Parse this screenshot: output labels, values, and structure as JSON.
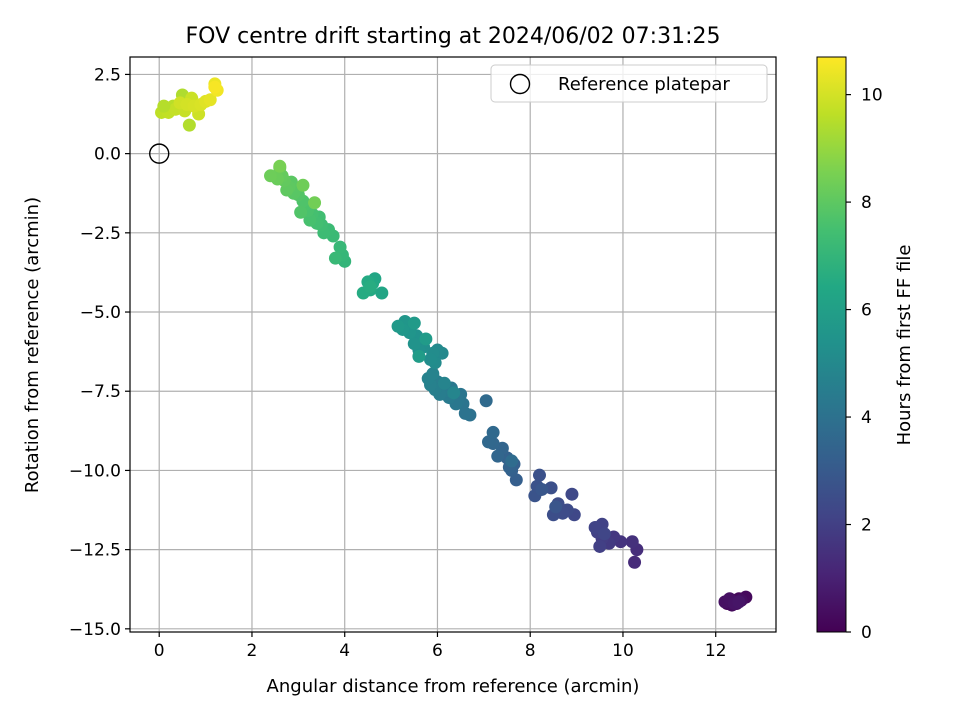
{
  "chart_data": {
    "type": "scatter",
    "title": "FOV centre drift starting at 2024/06/02 07:31:25",
    "xlabel": "Angular distance from reference (arcmin)",
    "ylabel": "Rotation from reference (arcmin)",
    "xlim": [
      -0.63,
      13.3
    ],
    "ylim": [
      -15.1,
      3.05
    ],
    "xticks": [
      0,
      2,
      4,
      6,
      8,
      10,
      12
    ],
    "xtick_labels": [
      "0",
      "2",
      "4",
      "6",
      "8",
      "10",
      "12"
    ],
    "yticks": [
      2.5,
      0.0,
      -2.5,
      -5.0,
      -7.5,
      -10.0,
      -12.5,
      -15.0
    ],
    "ytick_labels": [
      "2.5",
      "0.0",
      "−2.5",
      "−5.0",
      "−7.5",
      "−10.0",
      "−12.5",
      "−15.0"
    ],
    "grid": true,
    "legend": {
      "placement": "top-right",
      "entries": [
        "Reference platepar"
      ]
    },
    "colorbar": {
      "label": "Hours from first FF file",
      "colormap": "viridis",
      "range": [
        0,
        10.7
      ],
      "ticks": [
        0,
        2,
        4,
        6,
        8,
        10
      ],
      "tick_labels": [
        "0",
        "2",
        "4",
        "6",
        "8",
        "10"
      ]
    },
    "reference_point": {
      "x": 0,
      "y": 0,
      "name": "Reference platepar"
    },
    "points": [
      {
        "x": 12.25,
        "y": -14.2,
        "t": 0.05
      },
      {
        "x": 12.3,
        "y": -14.15,
        "t": 0.1
      },
      {
        "x": 12.4,
        "y": -14.1,
        "t": 0.15
      },
      {
        "x": 12.5,
        "y": -14.05,
        "t": 0.2
      },
      {
        "x": 12.65,
        "y": -14.0,
        "t": 0.25
      },
      {
        "x": 12.35,
        "y": -14.25,
        "t": 0.3
      },
      {
        "x": 12.45,
        "y": -14.2,
        "t": 0.35
      },
      {
        "x": 12.55,
        "y": -14.1,
        "t": 0.4
      },
      {
        "x": 12.2,
        "y": -14.15,
        "t": 0.45
      },
      {
        "x": 12.3,
        "y": -14.05,
        "t": 0.5
      },
      {
        "x": 12.4,
        "y": -14.2,
        "t": 0.55
      },
      {
        "x": 12.5,
        "y": -14.15,
        "t": 0.6
      },
      {
        "x": 10.25,
        "y": -12.9,
        "t": 1.3
      },
      {
        "x": 10.3,
        "y": -12.5,
        "t": 1.4
      },
      {
        "x": 10.2,
        "y": -12.25,
        "t": 1.5
      },
      {
        "x": 9.95,
        "y": -12.25,
        "t": 1.6
      },
      {
        "x": 9.8,
        "y": -12.1,
        "t": 1.7
      },
      {
        "x": 9.7,
        "y": -12.3,
        "t": 1.8
      },
      {
        "x": 9.55,
        "y": -12.15,
        "t": 1.9
      },
      {
        "x": 9.5,
        "y": -12.4,
        "t": 2.0
      },
      {
        "x": 9.45,
        "y": -11.95,
        "t": 2.05
      },
      {
        "x": 9.55,
        "y": -11.7,
        "t": 2.1
      },
      {
        "x": 9.4,
        "y": -11.8,
        "t": 2.15
      },
      {
        "x": 9.6,
        "y": -12.0,
        "t": 2.2
      },
      {
        "x": 8.95,
        "y": -11.4,
        "t": 2.3
      },
      {
        "x": 8.9,
        "y": -10.75,
        "t": 2.35
      },
      {
        "x": 8.8,
        "y": -11.25,
        "t": 2.4
      },
      {
        "x": 8.7,
        "y": -11.35,
        "t": 2.45
      },
      {
        "x": 8.6,
        "y": -11.05,
        "t": 2.5
      },
      {
        "x": 8.5,
        "y": -11.4,
        "t": 2.55
      },
      {
        "x": 8.45,
        "y": -10.55,
        "t": 2.6
      },
      {
        "x": 8.2,
        "y": -10.15,
        "t": 2.65
      },
      {
        "x": 8.15,
        "y": -10.5,
        "t": 2.7
      },
      {
        "x": 8.1,
        "y": -10.8,
        "t": 2.75
      },
      {
        "x": 8.55,
        "y": -11.15,
        "t": 2.8
      },
      {
        "x": 8.25,
        "y": -10.6,
        "t": 2.85
      },
      {
        "x": 7.7,
        "y": -10.3,
        "t": 3.2
      },
      {
        "x": 7.65,
        "y": -9.8,
        "t": 3.25
      },
      {
        "x": 7.6,
        "y": -10.0,
        "t": 3.3
      },
      {
        "x": 7.5,
        "y": -9.6,
        "t": 3.35
      },
      {
        "x": 7.55,
        "y": -9.9,
        "t": 3.4
      },
      {
        "x": 7.4,
        "y": -9.3,
        "t": 3.45
      },
      {
        "x": 7.3,
        "y": -9.55,
        "t": 3.5
      },
      {
        "x": 7.2,
        "y": -9.15,
        "t": 3.55
      },
      {
        "x": 7.1,
        "y": -9.1,
        "t": 3.6
      },
      {
        "x": 7.2,
        "y": -8.8,
        "t": 3.65
      },
      {
        "x": 7.05,
        "y": -7.8,
        "t": 3.7
      },
      {
        "x": 7.6,
        "y": -9.7,
        "t": 3.75
      },
      {
        "x": 6.7,
        "y": -8.25,
        "t": 4.0
      },
      {
        "x": 6.6,
        "y": -8.2,
        "t": 4.05
      },
      {
        "x": 6.55,
        "y": -7.9,
        "t": 4.1
      },
      {
        "x": 6.5,
        "y": -7.6,
        "t": 4.15
      },
      {
        "x": 6.45,
        "y": -7.8,
        "t": 4.2
      },
      {
        "x": 6.4,
        "y": -7.9,
        "t": 4.25
      },
      {
        "x": 6.3,
        "y": -7.4,
        "t": 4.3
      },
      {
        "x": 6.25,
        "y": -7.7,
        "t": 4.35
      },
      {
        "x": 6.2,
        "y": -7.5,
        "t": 4.4
      },
      {
        "x": 6.1,
        "y": -7.3,
        "t": 4.45
      },
      {
        "x": 6.05,
        "y": -7.6,
        "t": 4.5
      },
      {
        "x": 6.0,
        "y": -7.2,
        "t": 4.55
      },
      {
        "x": 5.95,
        "y": -7.45,
        "t": 4.6
      },
      {
        "x": 5.85,
        "y": -7.3,
        "t": 4.65
      },
      {
        "x": 5.8,
        "y": -7.1,
        "t": 4.7
      },
      {
        "x": 5.9,
        "y": -6.95,
        "t": 4.75
      },
      {
        "x": 6.15,
        "y": -7.25,
        "t": 4.8
      },
      {
        "x": 6.35,
        "y": -7.55,
        "t": 4.85
      },
      {
        "x": 6.1,
        "y": -6.3,
        "t": 5.0
      },
      {
        "x": 6.0,
        "y": -6.2,
        "t": 5.05
      },
      {
        "x": 5.95,
        "y": -6.6,
        "t": 5.1
      },
      {
        "x": 5.9,
        "y": -6.3,
        "t": 5.15
      },
      {
        "x": 5.85,
        "y": -6.5,
        "t": 5.2
      },
      {
        "x": 5.7,
        "y": -6.1,
        "t": 5.25
      },
      {
        "x": 5.65,
        "y": -5.9,
        "t": 5.3
      },
      {
        "x": 5.6,
        "y": -6.2,
        "t": 5.35
      },
      {
        "x": 5.55,
        "y": -5.75,
        "t": 5.4
      },
      {
        "x": 5.5,
        "y": -6.0,
        "t": 5.45
      },
      {
        "x": 5.45,
        "y": -5.4,
        "t": 5.5
      },
      {
        "x": 5.4,
        "y": -5.65,
        "t": 5.55
      },
      {
        "x": 5.3,
        "y": -5.3,
        "t": 5.6
      },
      {
        "x": 5.25,
        "y": -5.55,
        "t": 5.65
      },
      {
        "x": 5.15,
        "y": -5.45,
        "t": 5.7
      },
      {
        "x": 5.5,
        "y": -5.35,
        "t": 5.75
      },
      {
        "x": 5.75,
        "y": -5.85,
        "t": 5.8
      },
      {
        "x": 5.6,
        "y": -6.4,
        "t": 5.85
      },
      {
        "x": 4.8,
        "y": -4.4,
        "t": 6.3
      },
      {
        "x": 4.65,
        "y": -3.95,
        "t": 6.35
      },
      {
        "x": 4.6,
        "y": -4.1,
        "t": 6.4
      },
      {
        "x": 4.55,
        "y": -4.3,
        "t": 6.45
      },
      {
        "x": 4.5,
        "y": -4.05,
        "t": 6.5
      },
      {
        "x": 4.4,
        "y": -4.4,
        "t": 6.55
      },
      {
        "x": 4.55,
        "y": -4.2,
        "t": 6.6
      },
      {
        "x": 4.0,
        "y": -3.4,
        "t": 7.0
      },
      {
        "x": 3.95,
        "y": -3.2,
        "t": 7.05
      },
      {
        "x": 3.9,
        "y": -2.95,
        "t": 7.1
      },
      {
        "x": 3.8,
        "y": -3.3,
        "t": 7.15
      },
      {
        "x": 3.75,
        "y": -2.6,
        "t": 7.2
      },
      {
        "x": 3.65,
        "y": -2.4,
        "t": 7.25
      },
      {
        "x": 3.55,
        "y": -2.5,
        "t": 7.3
      },
      {
        "x": 3.5,
        "y": -2.25,
        "t": 7.35
      },
      {
        "x": 3.45,
        "y": -2.0,
        "t": 7.4
      },
      {
        "x": 3.4,
        "y": -2.2,
        "t": 7.45
      },
      {
        "x": 3.3,
        "y": -1.9,
        "t": 7.5
      },
      {
        "x": 3.25,
        "y": -2.1,
        "t": 7.55
      },
      {
        "x": 3.2,
        "y": -1.8,
        "t": 7.6
      },
      {
        "x": 3.15,
        "y": -1.6,
        "t": 7.65
      },
      {
        "x": 3.1,
        "y": -1.5,
        "t": 7.7
      },
      {
        "x": 3.05,
        "y": -1.85,
        "t": 7.75
      },
      {
        "x": 3.0,
        "y": -1.3,
        "t": 7.8
      },
      {
        "x": 2.95,
        "y": -1.1,
        "t": 7.85
      },
      {
        "x": 2.9,
        "y": -1.25,
        "t": 7.9
      },
      {
        "x": 2.85,
        "y": -0.9,
        "t": 7.95
      },
      {
        "x": 2.8,
        "y": -1.05,
        "t": 8.0
      },
      {
        "x": 2.75,
        "y": -1.15,
        "t": 8.05
      },
      {
        "x": 2.7,
        "y": -0.85,
        "t": 8.1
      },
      {
        "x": 2.65,
        "y": -0.7,
        "t": 8.15
      },
      {
        "x": 2.6,
        "y": -0.45,
        "t": 8.2
      },
      {
        "x": 2.55,
        "y": -0.8,
        "t": 8.25
      },
      {
        "x": 2.4,
        "y": -0.7,
        "t": 8.3
      },
      {
        "x": 3.1,
        "y": -1.0,
        "t": 8.35
      },
      {
        "x": 3.35,
        "y": -1.55,
        "t": 8.4
      },
      {
        "x": 2.6,
        "y": -0.4,
        "t": 8.5
      },
      {
        "x": 0.5,
        "y": 1.85,
        "t": 9.4
      },
      {
        "x": 0.65,
        "y": 0.9,
        "t": 9.45
      },
      {
        "x": 0.3,
        "y": 1.5,
        "t": 9.55
      },
      {
        "x": 0.15,
        "y": 1.4,
        "t": 9.6
      },
      {
        "x": 0.05,
        "y": 1.3,
        "t": 9.65
      },
      {
        "x": 0.2,
        "y": 1.3,
        "t": 9.7
      },
      {
        "x": 0.35,
        "y": 1.4,
        "t": 9.75
      },
      {
        "x": 0.55,
        "y": 1.35,
        "t": 9.8
      },
      {
        "x": 0.7,
        "y": 1.75,
        "t": 9.85
      },
      {
        "x": 0.85,
        "y": 1.25,
        "t": 9.9
      },
      {
        "x": 0.45,
        "y": 1.6,
        "t": 9.95
      },
      {
        "x": 0.6,
        "y": 1.55,
        "t": 10.0
      },
      {
        "x": 0.75,
        "y": 1.5,
        "t": 10.05
      },
      {
        "x": 0.9,
        "y": 1.55,
        "t": 10.1
      },
      {
        "x": 1.0,
        "y": 1.65,
        "t": 10.2
      },
      {
        "x": 1.1,
        "y": 1.7,
        "t": 10.3
      },
      {
        "x": 1.2,
        "y": 2.2,
        "t": 10.4
      },
      {
        "x": 1.25,
        "y": 2.0,
        "t": 10.5
      },
      {
        "x": 1.2,
        "y": 2.1,
        "t": 10.6
      },
      {
        "x": 0.1,
        "y": 1.5,
        "t": 9.5
      }
    ]
  }
}
